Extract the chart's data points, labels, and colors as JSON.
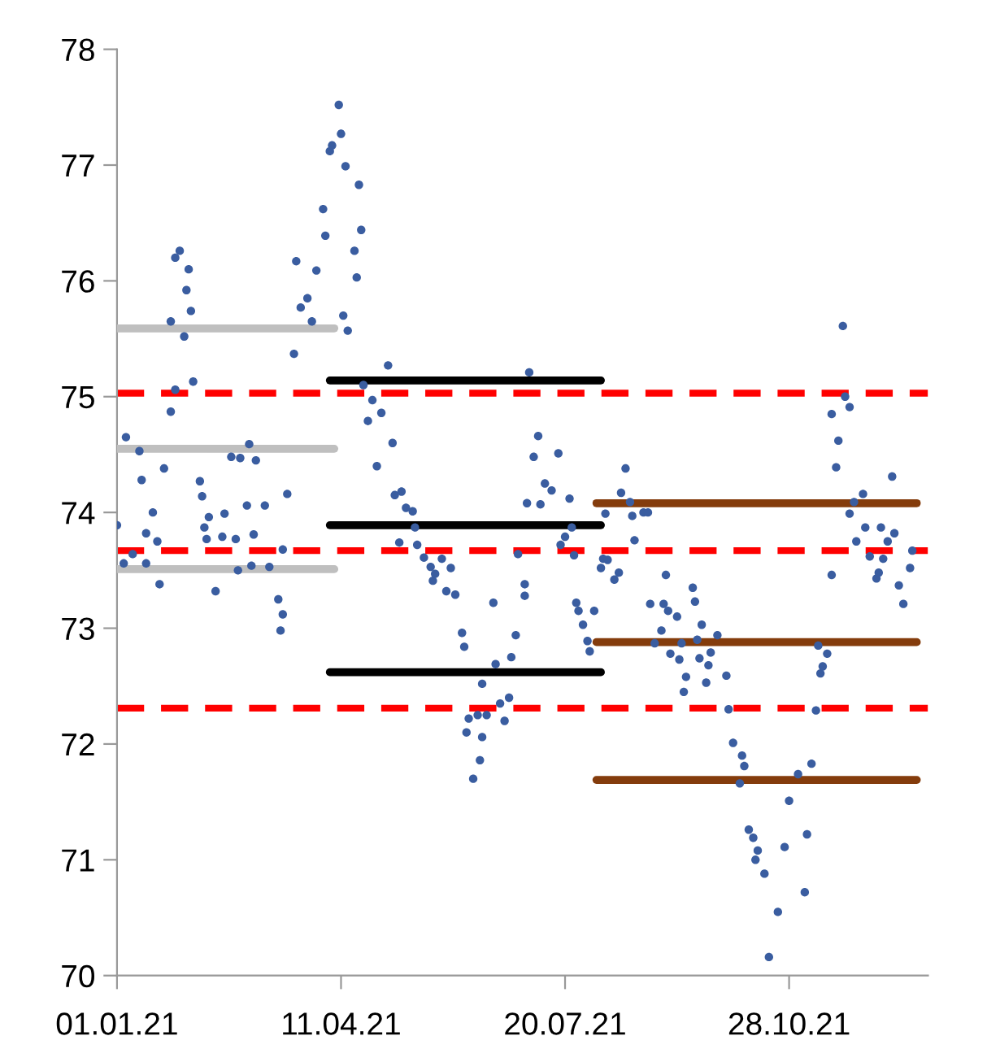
{
  "chart_data": {
    "type": "scatter",
    "xlim": [
      "2021-01-01",
      "2021-12-29"
    ],
    "xticks": [
      {
        "value": "2021-01-01",
        "label": "01.01.21"
      },
      {
        "value": "2021-04-11",
        "label": "11.04.21"
      },
      {
        "value": "2021-07-20",
        "label": "20.07.21"
      },
      {
        "value": "2021-10-28",
        "label": "28.10.21"
      }
    ],
    "ylim": [
      70,
      78
    ],
    "yticks": [
      70,
      71,
      72,
      73,
      74,
      75,
      76,
      77,
      78
    ],
    "grid": false,
    "legend": false,
    "ref_lines": [
      {
        "axis": "y",
        "value": 75.03,
        "color": "#ff0000",
        "line_style": "dashed"
      },
      {
        "axis": "y",
        "value": 73.67,
        "color": "#ff0000",
        "line_style": "dashed"
      },
      {
        "axis": "y",
        "value": 72.31,
        "color": "#ff0000",
        "line_style": "dashed"
      }
    ],
    "series": [
      {
        "color": "#3a5da0",
        "x": [
          "2021-01-01",
          "2021-01-04",
          "2021-01-05",
          "2021-01-08",
          "2021-01-11",
          "2021-01-12",
          "2021-01-14",
          "2021-01-14",
          "2021-01-17",
          "2021-01-19",
          "2021-01-20",
          "2021-01-22",
          "2021-01-25",
          "2021-01-25",
          "2021-01-27",
          "2021-01-27",
          "2021-01-29",
          "2021-01-31",
          "2021-02-01",
          "2021-02-02",
          "2021-02-03",
          "2021-02-04",
          "2021-02-07",
          "2021-02-08",
          "2021-02-09",
          "2021-02-10",
          "2021-02-11",
          "2021-02-14",
          "2021-02-17",
          "2021-02-18",
          "2021-02-21",
          "2021-02-23",
          "2021-02-24",
          "2021-02-25",
          "2021-02-28",
          "2021-03-01",
          "2021-03-02",
          "2021-03-03",
          "2021-03-04",
          "2021-03-08",
          "2021-03-10",
          "2021-03-14",
          "2021-03-15",
          "2021-03-16",
          "2021-03-16",
          "2021-03-18",
          "2021-03-21",
          "2021-03-22",
          "2021-03-24",
          "2021-03-27",
          "2021-03-29",
          "2021-03-31",
          "2021-04-03",
          "2021-04-04",
          "2021-04-06",
          "2021-04-07",
          "2021-04-10",
          "2021-04-11",
          "2021-04-12",
          "2021-04-13",
          "2021-04-14",
          "2021-04-17",
          "2021-04-18",
          "2021-04-19",
          "2021-04-20",
          "2021-04-21",
          "2021-04-23",
          "2021-04-25",
          "2021-04-27",
          "2021-04-29",
          "2021-05-02",
          "2021-05-04",
          "2021-05-05",
          "2021-05-07",
          "2021-05-08",
          "2021-05-10",
          "2021-05-13",
          "2021-05-14",
          "2021-05-15",
          "2021-05-18",
          "2021-05-21",
          "2021-05-22",
          "2021-05-23",
          "2021-05-26",
          "2021-05-28",
          "2021-05-30",
          "2021-06-01",
          "2021-06-04",
          "2021-06-05",
          "2021-06-06",
          "2021-06-07",
          "2021-06-09",
          "2021-06-11",
          "2021-06-12",
          "2021-06-13",
          "2021-06-13",
          "2021-06-15",
          "2021-06-18",
          "2021-06-19",
          "2021-06-21",
          "2021-06-23",
          "2021-06-25",
          "2021-06-26",
          "2021-06-28",
          "2021-06-29",
          "2021-07-02",
          "2021-07-02",
          "2021-07-03",
          "2021-07-04",
          "2021-07-06",
          "2021-07-08",
          "2021-07-09",
          "2021-07-11",
          "2021-07-14",
          "2021-07-17",
          "2021-07-18",
          "2021-07-20",
          "2021-07-22",
          "2021-07-23",
          "2021-07-24",
          "2021-07-25",
          "2021-07-26",
          "2021-07-28",
          "2021-07-30",
          "2021-07-31",
          "2021-08-02",
          "2021-08-05",
          "2021-08-06",
          "2021-08-07",
          "2021-08-08",
          "2021-08-11",
          "2021-08-13",
          "2021-08-14",
          "2021-08-16",
          "2021-08-18",
          "2021-08-19",
          "2021-08-20",
          "2021-08-24",
          "2021-08-26",
          "2021-08-27",
          "2021-08-29",
          "2021-09-01",
          "2021-09-02",
          "2021-09-03",
          "2021-09-04",
          "2021-09-05",
          "2021-09-08",
          "2021-09-09",
          "2021-09-10",
          "2021-09-11",
          "2021-09-12",
          "2021-09-15",
          "2021-09-16",
          "2021-09-17",
          "2021-09-18",
          "2021-09-19",
          "2021-09-21",
          "2021-09-22",
          "2021-09-23",
          "2021-09-26",
          "2021-09-30",
          "2021-10-01",
          "2021-10-03",
          "2021-10-06",
          "2021-10-07",
          "2021-10-08",
          "2021-10-10",
          "2021-10-12",
          "2021-10-13",
          "2021-10-14",
          "2021-10-17",
          "2021-10-19",
          "2021-10-23",
          "2021-10-26",
          "2021-10-28",
          "2021-11-01",
          "2021-11-04",
          "2021-11-05",
          "2021-11-07",
          "2021-11-09",
          "2021-11-10",
          "2021-11-11",
          "2021-11-12",
          "2021-11-14",
          "2021-11-16",
          "2021-11-16",
          "2021-11-18",
          "2021-11-19",
          "2021-11-21",
          "2021-11-22",
          "2021-11-24",
          "2021-11-24",
          "2021-11-26",
          "2021-11-27",
          "2021-11-30",
          "2021-12-01",
          "2021-12-03",
          "2021-12-06",
          "2021-12-07",
          "2021-12-08",
          "2021-12-09",
          "2021-12-11",
          "2021-12-13",
          "2021-12-14",
          "2021-12-16",
          "2021-12-18",
          "2021-12-21",
          "2021-12-22"
        ],
        "values": [
          73.89,
          73.56,
          74.65,
          73.64,
          74.53,
          74.28,
          73.82,
          73.56,
          74.0,
          73.75,
          73.38,
          74.38,
          74.87,
          75.65,
          75.06,
          76.2,
          76.26,
          75.52,
          75.92,
          76.1,
          75.74,
          75.13,
          74.27,
          74.14,
          73.87,
          73.77,
          73.96,
          73.32,
          73.79,
          73.99,
          74.48,
          73.77,
          73.5,
          74.47,
          74.06,
          74.59,
          73.54,
          73.81,
          74.45,
          74.06,
          73.53,
          73.25,
          72.98,
          73.12,
          73.68,
          74.16,
          75.37,
          76.17,
          75.77,
          75.85,
          75.65,
          76.09,
          76.62,
          76.39,
          77.12,
          77.17,
          77.52,
          77.27,
          75.7,
          76.99,
          75.57,
          76.26,
          76.03,
          76.83,
          76.44,
          75.1,
          74.79,
          74.97,
          74.4,
          74.86,
          75.27,
          74.6,
          74.15,
          73.74,
          74.18,
          74.04,
          74.01,
          73.87,
          73.72,
          73.61,
          73.53,
          73.41,
          73.47,
          73.6,
          73.32,
          73.52,
          73.29,
          72.96,
          72.84,
          72.1,
          72.22,
          71.7,
          72.25,
          71.86,
          72.52,
          72.06,
          72.25,
          73.22,
          72.69,
          72.35,
          72.2,
          72.4,
          72.75,
          72.94,
          73.64,
          73.38,
          73.28,
          74.08,
          75.21,
          74.48,
          74.66,
          74.07,
          74.25,
          74.19,
          74.51,
          73.72,
          73.79,
          74.12,
          73.87,
          73.63,
          73.22,
          73.15,
          73.03,
          72.89,
          72.8,
          73.15,
          73.52,
          73.6,
          73.99,
          73.59,
          73.42,
          73.48,
          74.17,
          74.38,
          74.09,
          73.97,
          73.76,
          74.0,
          74.0,
          73.21,
          72.87,
          72.98,
          73.21,
          73.46,
          73.15,
          72.78,
          73.1,
          72.73,
          72.87,
          72.45,
          72.58,
          73.35,
          73.23,
          72.9,
          72.74,
          73.03,
          72.53,
          72.68,
          72.79,
          72.94,
          72.59,
          72.3,
          72.01,
          71.66,
          71.9,
          71.81,
          71.26,
          71.19,
          71.0,
          71.08,
          70.88,
          70.16,
          70.55,
          71.11,
          71.51,
          71.74,
          70.72,
          71.22,
          71.83,
          72.29,
          72.85,
          72.61,
          72.67,
          72.78,
          73.46,
          74.85,
          74.39,
          74.62,
          75.61,
          75.0,
          74.91,
          73.99,
          74.09,
          73.75,
          74.16,
          73.87,
          73.62,
          73.43,
          73.48,
          73.87,
          73.6,
          73.75,
          74.31,
          73.82,
          73.37,
          73.21,
          73.52,
          73.67
        ]
      },
      {
        "type": "line",
        "color": "#bfbfbf",
        "x": [
          "2021-01-01",
          "2021-04-08"
        ],
        "values": [
          75.59,
          75.59
        ]
      },
      {
        "type": "line",
        "color": "#bfbfbf",
        "x": [
          "2021-01-01",
          "2021-04-08"
        ],
        "values": [
          74.55,
          74.55
        ]
      },
      {
        "type": "line",
        "color": "#bfbfbf",
        "x": [
          "2021-01-01",
          "2021-04-08"
        ],
        "values": [
          73.51,
          73.51
        ]
      },
      {
        "type": "line",
        "color": "#000000",
        "x": [
          "2021-04-06",
          "2021-08-05"
        ],
        "values": [
          75.14,
          75.14
        ]
      },
      {
        "type": "line",
        "color": "#000000",
        "x": [
          "2021-04-06",
          "2021-08-05"
        ],
        "values": [
          73.89,
          73.89
        ]
      },
      {
        "type": "line",
        "color": "#000000",
        "x": [
          "2021-04-06",
          "2021-08-05"
        ],
        "values": [
          72.62,
          72.62
        ]
      },
      {
        "type": "line",
        "color": "#843c0c",
        "x": [
          "2021-08-03",
          "2021-12-24"
        ],
        "values": [
          74.08,
          74.08
        ]
      },
      {
        "type": "line",
        "color": "#843c0c",
        "x": [
          "2021-08-03",
          "2021-12-24"
        ],
        "values": [
          72.88,
          72.88
        ]
      },
      {
        "type": "line",
        "color": "#843c0c",
        "x": [
          "2021-08-03",
          "2021-12-24"
        ],
        "values": [
          71.69,
          71.69
        ]
      }
    ]
  }
}
